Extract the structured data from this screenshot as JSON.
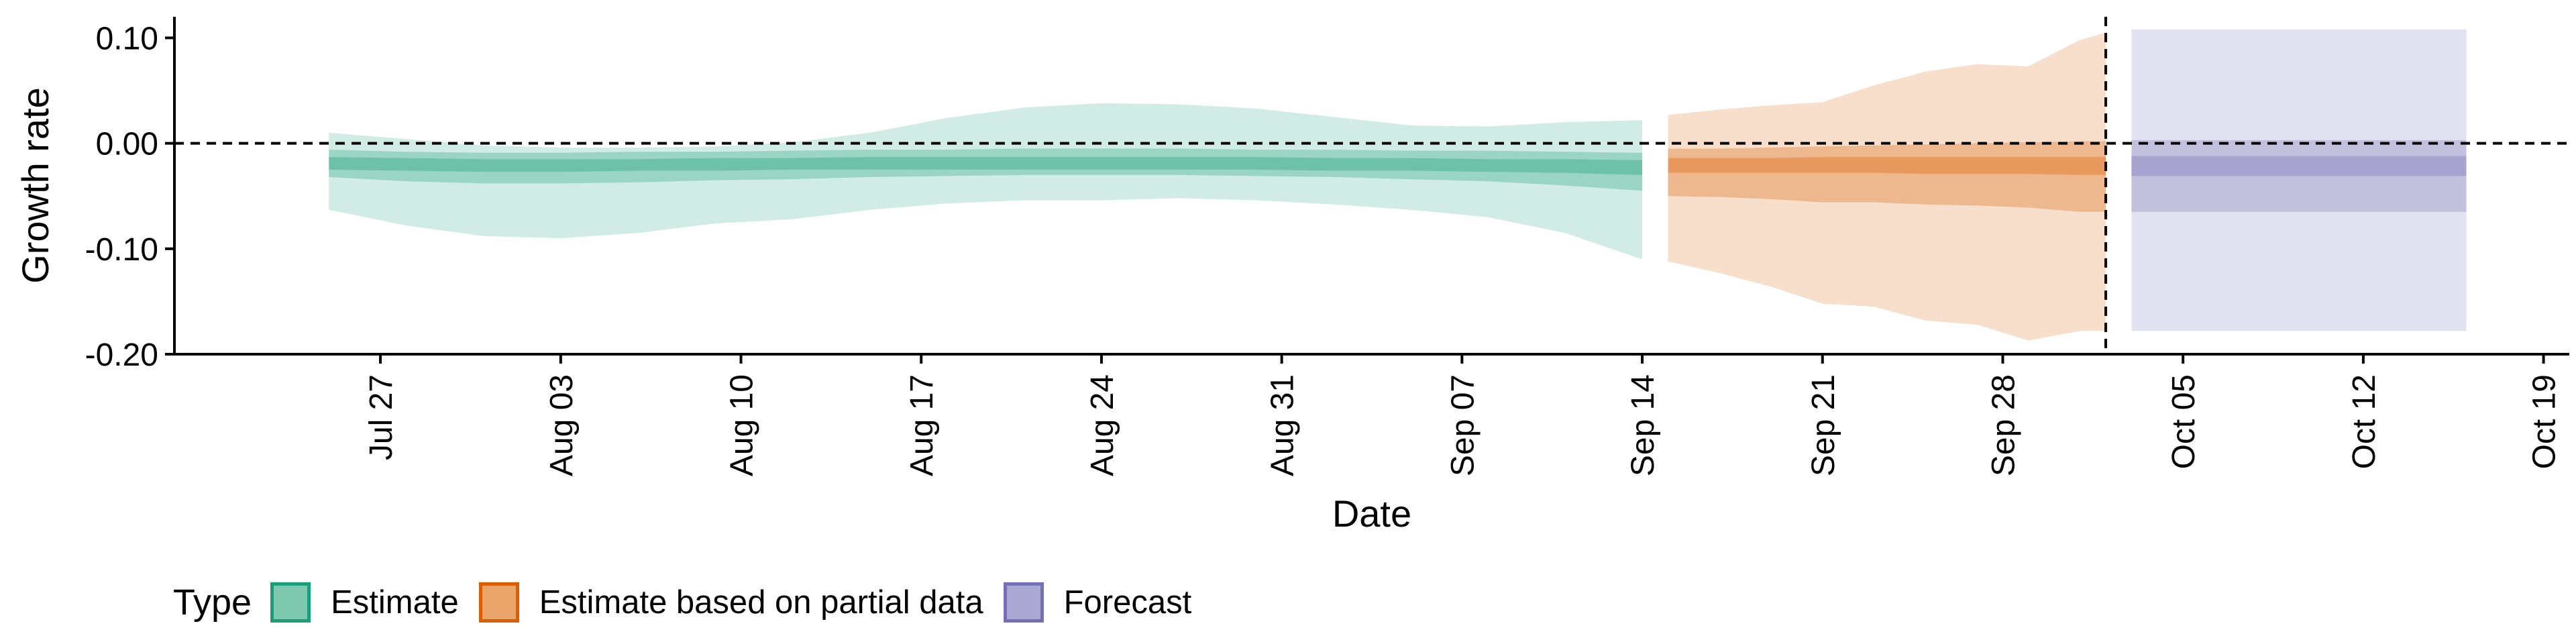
{
  "chart_data": {
    "type": "area",
    "xlabel": "Date",
    "ylabel": "Growth rate",
    "ylim": [
      -0.2,
      0.12
    ],
    "xlim": [
      "2020-07-19",
      "2020-10-20"
    ],
    "yticks": [
      {
        "value": 0.1,
        "label": "0.10"
      },
      {
        "value": 0.0,
        "label": "0.00"
      },
      {
        "value": -0.1,
        "label": "-0.10"
      },
      {
        "value": -0.2,
        "label": "-0.20"
      }
    ],
    "xticks": [
      {
        "date": "2020-07-27",
        "label": "Jul 27"
      },
      {
        "date": "2020-08-03",
        "label": "Aug 03"
      },
      {
        "date": "2020-08-10",
        "label": "Aug 10"
      },
      {
        "date": "2020-08-17",
        "label": "Aug 17"
      },
      {
        "date": "2020-08-24",
        "label": "Aug 24"
      },
      {
        "date": "2020-08-31",
        "label": "Aug 31"
      },
      {
        "date": "2020-09-07",
        "label": "Sep 07"
      },
      {
        "date": "2020-09-14",
        "label": "Sep 14"
      },
      {
        "date": "2020-09-21",
        "label": "Sep 21"
      },
      {
        "date": "2020-09-28",
        "label": "Sep 28"
      },
      {
        "date": "2020-10-05",
        "label": "Oct 05"
      },
      {
        "date": "2020-10-12",
        "label": "Oct 12"
      },
      {
        "date": "2020-10-19",
        "label": "Oct 19"
      }
    ],
    "hline": 0,
    "vline_date": "2020-10-02",
    "grid": false,
    "legend_position": "bottom-left",
    "series": [
      {
        "name": "Estimate",
        "color": "#1B9E77",
        "x": [
          "2020-07-25",
          "2020-07-28",
          "2020-07-31",
          "2020-08-03",
          "2020-08-06",
          "2020-08-09",
          "2020-08-12",
          "2020-08-15",
          "2020-08-18",
          "2020-08-21",
          "2020-08-24",
          "2020-08-27",
          "2020-08-30",
          "2020-09-02",
          "2020-09-05",
          "2020-09-08",
          "2020-09-11",
          "2020-09-14"
        ],
        "lower90": [
          -0.063,
          -0.078,
          -0.088,
          -0.09,
          -0.085,
          -0.076,
          -0.072,
          -0.063,
          -0.057,
          -0.054,
          -0.054,
          -0.052,
          -0.054,
          -0.058,
          -0.063,
          -0.07,
          -0.085,
          -0.11
        ],
        "lower50": [
          -0.032,
          -0.036,
          -0.038,
          -0.038,
          -0.037,
          -0.035,
          -0.034,
          -0.032,
          -0.031,
          -0.03,
          -0.03,
          -0.03,
          -0.031,
          -0.032,
          -0.034,
          -0.036,
          -0.04,
          -0.045
        ],
        "lower20": [
          -0.025,
          -0.026,
          -0.027,
          -0.027,
          -0.026,
          -0.026,
          -0.025,
          -0.025,
          -0.025,
          -0.025,
          -0.025,
          -0.025,
          -0.025,
          -0.026,
          -0.026,
          -0.027,
          -0.028,
          -0.03
        ],
        "upper20": [
          -0.013,
          -0.014,
          -0.015,
          -0.015,
          -0.015,
          -0.014,
          -0.014,
          -0.013,
          -0.013,
          -0.013,
          -0.013,
          -0.013,
          -0.013,
          -0.014,
          -0.014,
          -0.015,
          -0.015,
          -0.016
        ],
        "upper50": [
          -0.006,
          -0.008,
          -0.009,
          -0.009,
          -0.008,
          -0.008,
          -0.007,
          -0.006,
          -0.006,
          -0.005,
          -0.005,
          -0.005,
          -0.006,
          -0.006,
          -0.007,
          -0.007,
          -0.008,
          -0.009
        ],
        "upper90": [
          0.01,
          0.004,
          -0.002,
          -0.004,
          -0.004,
          -0.003,
          0.001,
          0.01,
          0.024,
          0.034,
          0.038,
          0.037,
          0.033,
          0.025,
          0.017,
          0.016,
          0.02,
          0.022
        ]
      },
      {
        "name": "Estimate based on partial data",
        "color": "#D95F02",
        "x": [
          "2020-09-15",
          "2020-09-17",
          "2020-09-19",
          "2020-09-21",
          "2020-09-23",
          "2020-09-25",
          "2020-09-27",
          "2020-09-29",
          "2020-10-01",
          "2020-10-02"
        ],
        "lower90": [
          -0.112,
          -0.123,
          -0.136,
          -0.152,
          -0.155,
          -0.168,
          -0.172,
          -0.187,
          -0.178,
          -0.178
        ],
        "lower50": [
          -0.05,
          -0.051,
          -0.053,
          -0.056,
          -0.056,
          -0.058,
          -0.059,
          -0.061,
          -0.065,
          -0.065
        ],
        "lower20": [
          -0.028,
          -0.028,
          -0.028,
          -0.028,
          -0.028,
          -0.029,
          -0.029,
          -0.029,
          -0.03,
          -0.03
        ],
        "upper20": [
          -0.014,
          -0.014,
          -0.014,
          -0.013,
          -0.013,
          -0.013,
          -0.013,
          -0.013,
          -0.013,
          -0.013
        ],
        "upper50": [
          -0.005,
          -0.005,
          -0.004,
          -0.003,
          -0.002,
          -0.001,
          0.0,
          0.001,
          0.002,
          0.002
        ],
        "upper90": [
          0.027,
          0.032,
          0.036,
          0.039,
          0.055,
          0.068,
          0.075,
          0.073,
          0.098,
          0.105
        ]
      },
      {
        "name": "Forecast",
        "color": "#7570B3",
        "x": [
          "2020-10-03",
          "2020-10-16"
        ],
        "lower90": [
          -0.178,
          -0.178
        ],
        "lower50": [
          -0.065,
          -0.065
        ],
        "lower20": [
          -0.031,
          -0.031
        ],
        "upper20": [
          -0.012,
          -0.012
        ],
        "upper50": [
          0.003,
          0.003
        ],
        "upper90": [
          0.108,
          0.108
        ]
      }
    ]
  },
  "legend": {
    "title": "Type",
    "items": [
      {
        "label": "Estimate",
        "fill": "#7CC7AE",
        "border": "#1B9E77"
      },
      {
        "label": "Estimate based on partial data",
        "fill": "#EAA469",
        "border": "#D95F02"
      },
      {
        "label": "Forecast",
        "fill": "#AAA8D2",
        "border": "#7570B3"
      }
    ]
  }
}
